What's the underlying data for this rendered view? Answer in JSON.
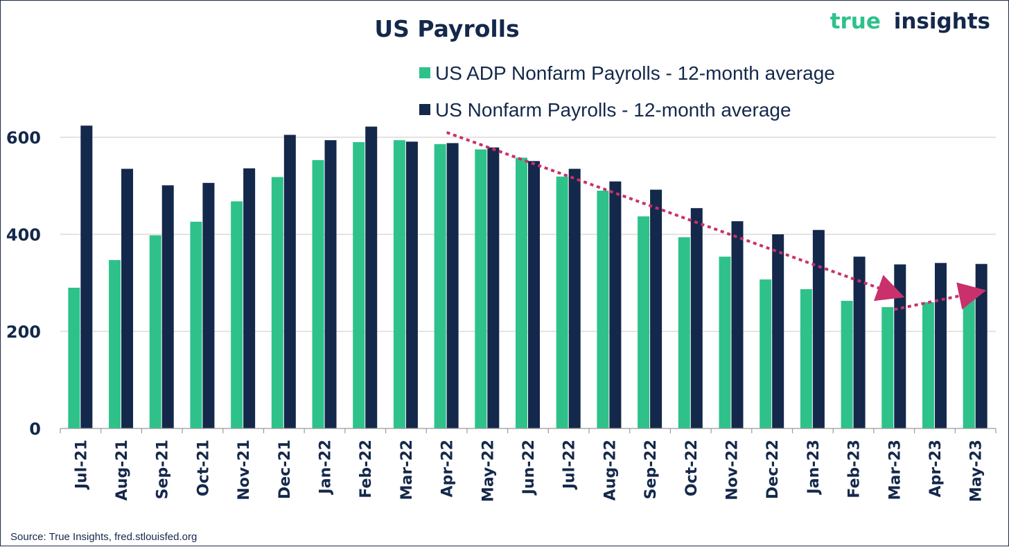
{
  "logo": {
    "part1": "true",
    "part2": "insights"
  },
  "source_note": "Source: True Insights, fred.stlouisfed.org",
  "colors": {
    "adp": "#2ec28a",
    "nfp": "#14284b",
    "trend_arrow": "#c8316b",
    "grid": "#c8c8c8",
    "text": "#14284b"
  },
  "chart_data": {
    "type": "bar",
    "title": "US Payrolls",
    "categories": [
      "Jul-21",
      "Aug-21",
      "Sep-21",
      "Oct-21",
      "Nov-21",
      "Dec-21",
      "Jan-22",
      "Feb-22",
      "Mar-22",
      "Apr-22",
      "May-22",
      "Jun-22",
      "Jul-22",
      "Aug-22",
      "Sep-22",
      "Oct-22",
      "Nov-22",
      "Dec-22",
      "Jan-23",
      "Feb-23",
      "Mar-23",
      "Apr-23",
      "May-23"
    ],
    "series": [
      {
        "name": "US ADP Nonfarm Payrolls - 12-month average",
        "color": "#2ec28a",
        "values": [
          290,
          347,
          398,
          426,
          468,
          518,
          553,
          590,
          594,
          586,
          575,
          558,
          519,
          490,
          437,
          394,
          354,
          307,
          287,
          263,
          250,
          260,
          266
        ]
      },
      {
        "name": "US Nonfarm Payrolls - 12-month average",
        "color": "#14284b",
        "values": [
          624,
          535,
          501,
          506,
          536,
          605,
          594,
          622,
          591,
          588,
          579,
          551,
          535,
          509,
          492,
          454,
          427,
          400,
          409,
          354,
          338,
          341,
          339
        ]
      }
    ],
    "ylim": [
      0,
      700
    ],
    "yticks": [
      0,
      200,
      400,
      600
    ],
    "ytick_labels": [
      "0",
      "200",
      "400",
      "600"
    ],
    "xlabel": "",
    "ylabel": "",
    "grid": true,
    "legend_position": "top-center",
    "annotations": [
      {
        "type": "trend-arrow",
        "from": {
          "x": "Apr-22",
          "y": 610
        },
        "to": {
          "x": "Mar-23",
          "y": 278
        }
      },
      {
        "type": "trend-arrow",
        "from": {
          "x": "Mar-23",
          "y": 245
        },
        "to": {
          "x": "May-23",
          "y": 280
        }
      }
    ]
  }
}
